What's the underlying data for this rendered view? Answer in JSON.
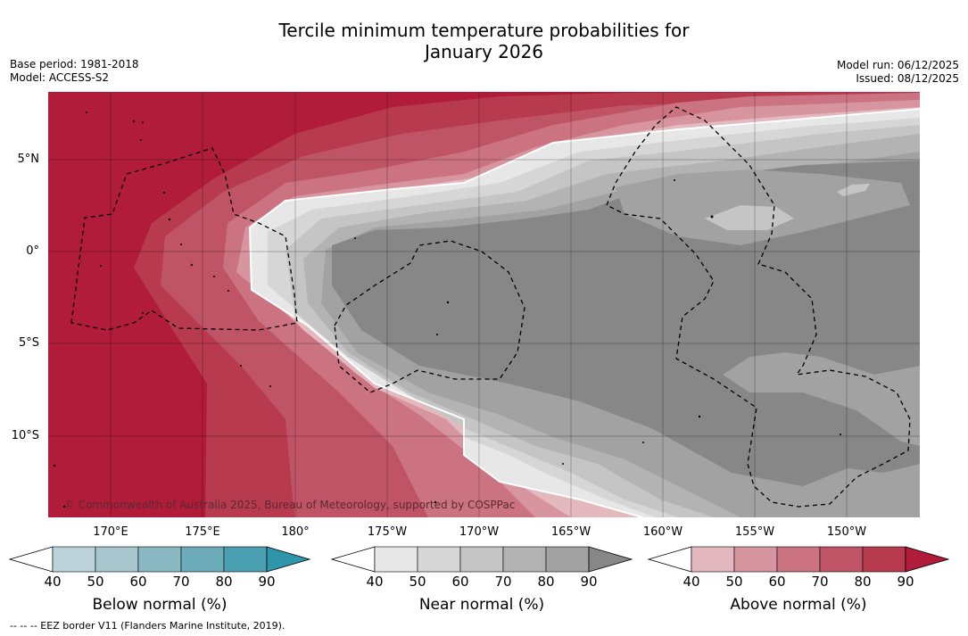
{
  "title_line1": "Tercile minimum temperature probabilities for",
  "title_line2": "January 2026",
  "base_period": "Base period: 1981-2018",
  "model": "Model: ACCESS-S2",
  "model_run": "Model run: 06/12/2025",
  "issued": "Issued: 08/12/2025",
  "copyright": "© Commonwealth of Australia 2025, Bureau of Meteorology, supported by COSPPac",
  "lat_labels": [
    "5°N",
    "0°",
    "5°S",
    "10°S"
  ],
  "lon_labels": [
    "170°E",
    "175°E",
    "180°",
    "175°W",
    "170°W",
    "165°W",
    "160°W",
    "155°W",
    "150°W"
  ],
  "colorbars": [
    {
      "title": "Below normal (%)",
      "ticks": [
        "40",
        "50",
        "60",
        "70",
        "80",
        "90"
      ],
      "colors": [
        "#ffffff",
        "#bcd2da",
        "#a7c6cd",
        "#8ab8c3",
        "#6cabb9",
        "#4aa0b1",
        "#2e95aa"
      ]
    },
    {
      "title": "Near normal (%)",
      "ticks": [
        "40",
        "50",
        "60",
        "70",
        "80",
        "90"
      ],
      "colors": [
        "#ffffff",
        "#e7e7e7",
        "#d6d6d6",
        "#c5c5c5",
        "#b3b3b3",
        "#a2a2a2",
        "#878787"
      ]
    },
    {
      "title": "Above normal (%)",
      "ticks": [
        "40",
        "50",
        "60",
        "70",
        "80",
        "90"
      ],
      "colors": [
        "#ffffff",
        "#e4b8bf",
        "#d7959f",
        "#cb7380",
        "#bf5466",
        "#b73a4e",
        "#b01c39"
      ]
    }
  ],
  "footnote": "--  --  -- EEZ border V11 (Flanders Marine Institute, 2019)."
}
